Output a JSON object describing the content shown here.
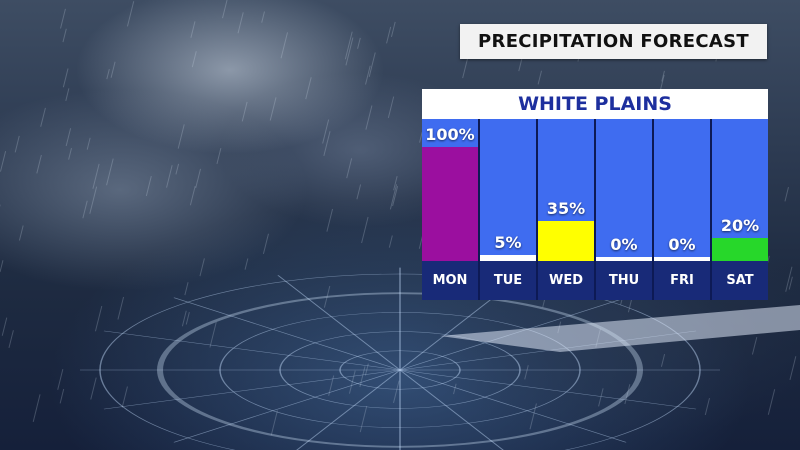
{
  "header": {
    "title": "PRECIPITATION FORECAST"
  },
  "chart_data": {
    "type": "bar",
    "title": "WHITE PLAINS",
    "categories": [
      "MON",
      "TUE",
      "WED",
      "THU",
      "FRI",
      "SAT"
    ],
    "values": [
      100,
      5,
      35,
      0,
      0,
      20
    ],
    "value_labels": [
      "100%",
      "5%",
      "35%",
      "0%",
      "0%",
      "20%"
    ],
    "unit": "%",
    "ylim": [
      0,
      100
    ],
    "grid": false,
    "bar_colors": [
      "#9b0f9f",
      "#ffffff",
      "#ffff00",
      "#ffffff",
      "#ffffff",
      "#27d72a"
    ]
  },
  "colors": {
    "column_background": "#3f6cf0",
    "label_strip": "#182a78",
    "city_text": "#1d2f9e"
  }
}
